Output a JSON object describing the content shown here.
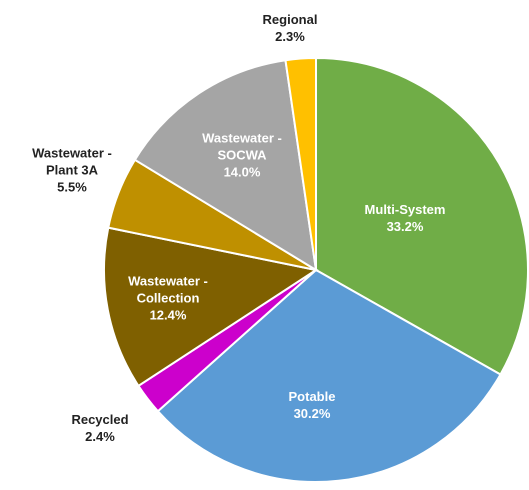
{
  "chart_data": {
    "type": "pie",
    "categories": [
      "Multi-System",
      "Potable",
      "Recycled",
      "Wastewater - Collection",
      "Wastewater - Plant 3A",
      "Wastewater - SOCWA",
      "Regional"
    ],
    "values": [
      33.2,
      30.2,
      2.4,
      12.4,
      5.5,
      14.0,
      2.3
    ],
    "value_labels": [
      "33.2%",
      "30.2%",
      "2.4%",
      "12.4%",
      "5.5%",
      "14.0%",
      "2.3%"
    ],
    "colors": [
      "#70ad47",
      "#5b9bd5",
      "#cc00cc",
      "#7f6000",
      "#bf9000",
      "#a5a5a5",
      "#ffc000"
    ]
  }
}
